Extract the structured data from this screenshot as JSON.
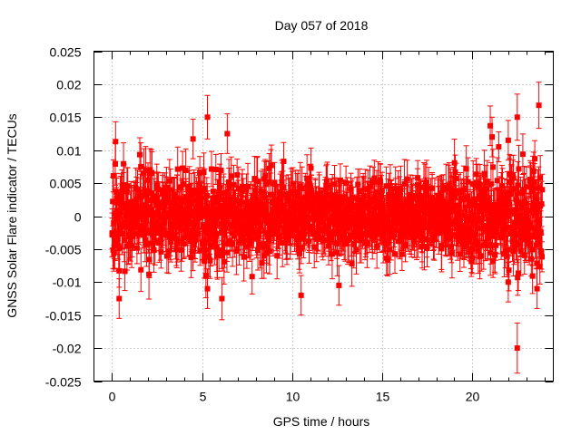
{
  "chart_data": {
    "type": "scatter",
    "title": "Day 057 of 2018",
    "xlabel": "GPS time / hours",
    "ylabel": "GNSS Solar Flare indicator / TECUs",
    "xlim": [
      -1,
      24.5
    ],
    "ylim": [
      -0.025,
      0.025
    ],
    "x_ticks": [
      0,
      5,
      10,
      15,
      20
    ],
    "x_tick_labels": [
      "0",
      "5",
      "10",
      "15",
      "20"
    ],
    "y_ticks": [
      -0.025,
      -0.02,
      -0.015,
      -0.01,
      -0.005,
      0,
      0.005,
      0.01,
      0.015,
      0.02,
      0.025
    ],
    "y_tick_labels": [
      "-0.025",
      "-0.02",
      "-0.015",
      "-0.01",
      "-0.005",
      "0",
      "0.005",
      "0.01",
      "0.015",
      "0.02",
      "0.025"
    ],
    "grid": true,
    "series": [
      {
        "name": "GNSS Solar Flare indicator",
        "color": "#ff0000",
        "marker": "square",
        "error_bars": true,
        "x_start": 0,
        "x_end": 23.9,
        "sample_interval_hours": 0.0333,
        "noise_envelope": [
          {
            "x": 0,
            "sd": 0.0038
          },
          {
            "x": 3,
            "sd": 0.0033
          },
          {
            "x": 6,
            "sd": 0.0035
          },
          {
            "x": 9,
            "sd": 0.003
          },
          {
            "x": 12,
            "sd": 0.0027
          },
          {
            "x": 15,
            "sd": 0.0026
          },
          {
            "x": 18,
            "sd": 0.0027
          },
          {
            "x": 20,
            "sd": 0.0035
          },
          {
            "x": 22,
            "sd": 0.0042
          },
          {
            "x": 23.9,
            "sd": 0.004
          }
        ],
        "typical_error": 0.003,
        "highlighted_points": [
          {
            "x": 0.4,
            "y": -0.0125,
            "err": 0.003
          },
          {
            "x": 0.2,
            "y": 0.0113,
            "err": 0.003
          },
          {
            "x": 4.5,
            "y": 0.0117,
            "err": 0.003
          },
          {
            "x": 5.3,
            "y": 0.015,
            "err": 0.0033
          },
          {
            "x": 5.3,
            "y": -0.011,
            "err": 0.003
          },
          {
            "x": 6.1,
            "y": -0.0125,
            "err": 0.0032
          },
          {
            "x": 6.4,
            "y": 0.0125,
            "err": 0.003
          },
          {
            "x": 10.5,
            "y": -0.012,
            "err": 0.003
          },
          {
            "x": 12.6,
            "y": -0.0105,
            "err": 0.003
          },
          {
            "x": 21.0,
            "y": 0.0137,
            "err": 0.003
          },
          {
            "x": 21.1,
            "y": 0.012,
            "err": 0.003
          },
          {
            "x": 22.0,
            "y": 0.0115,
            "err": 0.003
          },
          {
            "x": 22.0,
            "y": -0.01,
            "err": 0.003
          },
          {
            "x": 22.5,
            "y": -0.02,
            "err": 0.0038
          },
          {
            "x": 22.5,
            "y": 0.015,
            "err": 0.0035
          },
          {
            "x": 23.7,
            "y": 0.0168,
            "err": 0.0035
          },
          {
            "x": 23.6,
            "y": -0.011,
            "err": 0.003
          }
        ]
      }
    ]
  }
}
